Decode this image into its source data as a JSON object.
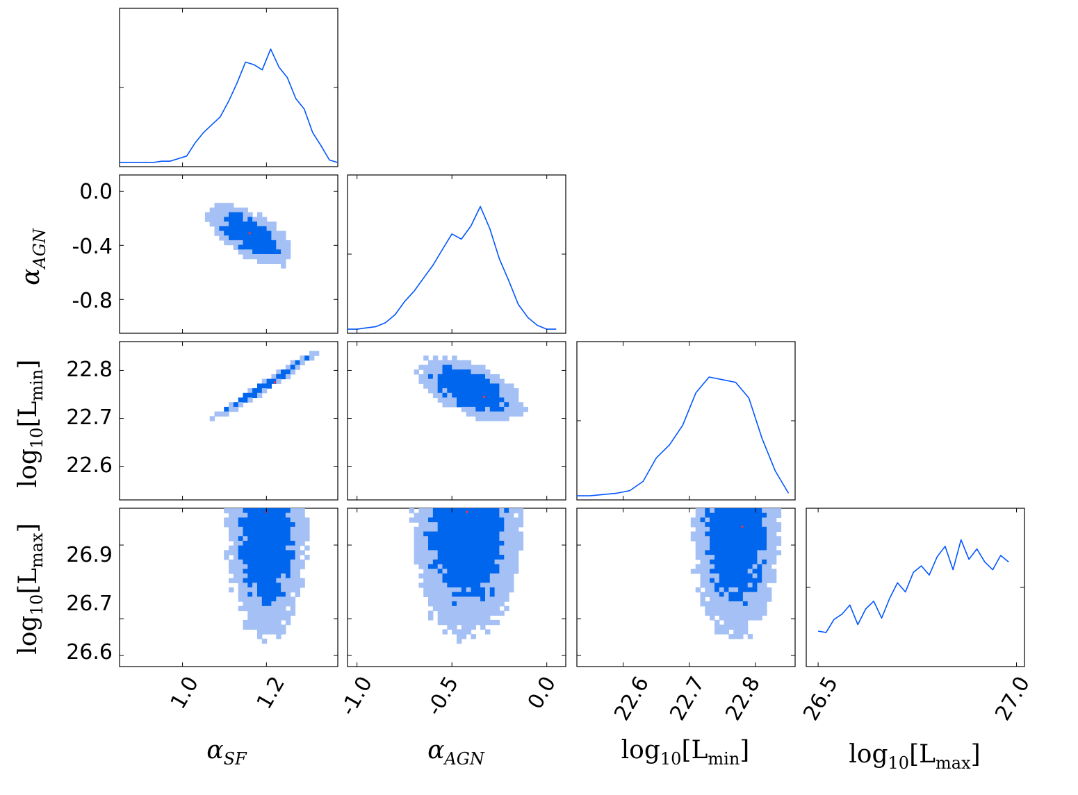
{
  "chart_data": [
    {
      "type": "line",
      "panel": "alpha_SF marginal",
      "x": [
        0.85,
        0.87,
        0.89,
        0.91,
        0.93,
        0.95,
        0.97,
        0.99,
        1.01,
        1.03,
        1.05,
        1.07,
        1.09,
        1.11,
        1.13,
        1.15,
        1.17,
        1.19,
        1.21,
        1.23,
        1.25,
        1.27,
        1.29,
        1.31,
        1.33,
        1.35,
        1.37
      ],
      "values": [
        0.01,
        0.01,
        0.01,
        0.01,
        0.01,
        0.02,
        0.02,
        0.04,
        0.06,
        0.16,
        0.24,
        0.3,
        0.36,
        0.48,
        0.62,
        0.78,
        0.76,
        0.72,
        0.88,
        0.74,
        0.66,
        0.5,
        0.42,
        0.24,
        0.14,
        0.03,
        0.01
      ],
      "xlim": [
        0.85,
        1.37
      ],
      "xlabel": "",
      "ylabel": ""
    },
    {
      "type": "heatmap",
      "panel": "alpha_AGN vs alpha_SF",
      "xlim": [
        0.85,
        1.37
      ],
      "ylim": [
        -1.05,
        0.12
      ],
      "ylabel": "α_AGN",
      "yticks": [
        "0.0",
        "-0.4",
        "-0.8"
      ],
      "center": [
        1.16,
        -0.32
      ],
      "sd": [
        0.055,
        0.12
      ],
      "corr": -0.62,
      "peak": [
        1.16,
        -0.31
      ]
    },
    {
      "type": "line",
      "panel": "alpha_AGN marginal",
      "x": [
        -1.05,
        -1.0,
        -0.95,
        -0.9,
        -0.85,
        -0.8,
        -0.75,
        -0.7,
        -0.65,
        -0.6,
        -0.55,
        -0.5,
        -0.45,
        -0.4,
        -0.35,
        -0.3,
        -0.25,
        -0.2,
        -0.15,
        -0.1,
        -0.05,
        0.0,
        0.05
      ],
      "values": [
        0.01,
        0.01,
        0.02,
        0.03,
        0.06,
        0.12,
        0.22,
        0.3,
        0.4,
        0.5,
        0.62,
        0.74,
        0.7,
        0.8,
        0.95,
        0.78,
        0.55,
        0.38,
        0.2,
        0.1,
        0.04,
        0.01,
        0.01
      ],
      "xlim": [
        -1.05,
        0.1
      ],
      "xlabel": "",
      "ylabel": ""
    },
    {
      "type": "heatmap",
      "panel": "log10 Lmin vs alpha_SF",
      "xlim": [
        0.85,
        1.37
      ],
      "ylim": [
        22.53,
        22.86
      ],
      "ylabel": "log10[Lmin]",
      "yticks": [
        "22.8",
        "22.7",
        "22.6"
      ],
      "center": [
        1.2,
        22.77
      ],
      "sd": [
        0.07,
        0.04
      ],
      "corr": 0.985,
      "peak": [
        1.22,
        22.775
      ]
    },
    {
      "type": "heatmap",
      "panel": "log10 Lmin vs alpha_AGN",
      "xlim": [
        -1.05,
        0.1
      ],
      "ylim": [
        22.53,
        22.86
      ],
      "center": [
        -0.4,
        22.76
      ],
      "sd": [
        0.15,
        0.035
      ],
      "corr": -0.55,
      "peak": [
        -0.33,
        22.745
      ]
    },
    {
      "type": "line",
      "panel": "log10 Lmin marginal",
      "x": [
        22.53,
        22.55,
        22.57,
        22.59,
        22.61,
        22.63,
        22.65,
        22.67,
        22.69,
        22.71,
        22.73,
        22.75,
        22.77,
        22.79,
        22.81,
        22.83,
        22.85
      ],
      "values": [
        0.01,
        0.01,
        0.02,
        0.03,
        0.05,
        0.12,
        0.3,
        0.4,
        0.55,
        0.8,
        0.92,
        0.9,
        0.88,
        0.76,
        0.45,
        0.2,
        0.03
      ],
      "xlim": [
        22.53,
        22.86
      ],
      "xlabel": "",
      "ylabel": ""
    },
    {
      "type": "heatmap",
      "panel": "log10 Lmax vs alpha_SF",
      "xlim": [
        0.85,
        1.37
      ],
      "ylim": [
        26.57,
        27.0
      ],
      "ylabel": "log10[Lmax]",
      "yticks": [
        "26.9",
        "26.7",
        "26.6"
      ],
      "xlabel": "α_SF",
      "xticks": [
        "1.0",
        "1.2"
      ],
      "center": [
        1.2,
        26.95
      ],
      "sd": [
        0.05,
        0.16
      ],
      "corr": 0.0,
      "peak": [
        1.2,
        26.99
      ]
    },
    {
      "type": "heatmap",
      "panel": "log10 Lmax vs alpha_AGN",
      "xlim": [
        -1.05,
        0.1
      ],
      "ylim": [
        26.57,
        27.0
      ],
      "xlabel": "α_AGN",
      "xticks": [
        "-1.0",
        "-0.5",
        "0.0"
      ],
      "center": [
        -0.42,
        26.95
      ],
      "sd": [
        0.15,
        0.16
      ],
      "corr": 0.0,
      "peak": [
        -0.42,
        26.99
      ]
    },
    {
      "type": "heatmap",
      "panel": "log10 Lmax vs log10 Lmin",
      "xlim": [
        22.53,
        22.86
      ],
      "ylim": [
        26.57,
        27.0
      ],
      "xlabel": "log10[Lmin]",
      "xticks": [
        "22.6",
        "22.7",
        "22.8"
      ],
      "center": [
        22.77,
        26.95
      ],
      "sd": [
        0.035,
        0.16
      ],
      "corr": 0.0,
      "peak": [
        22.78,
        26.95
      ]
    },
    {
      "type": "line",
      "panel": "log10 Lmax marginal",
      "x": [
        26.5,
        26.52,
        26.54,
        26.56,
        26.58,
        26.6,
        26.62,
        26.64,
        26.66,
        26.68,
        26.7,
        26.72,
        26.74,
        26.76,
        26.78,
        26.8,
        26.82,
        26.84,
        26.86,
        26.88,
        26.9,
        26.92,
        26.94,
        26.96,
        26.98
      ],
      "values": [
        0.25,
        0.24,
        0.34,
        0.38,
        0.45,
        0.3,
        0.42,
        0.48,
        0.35,
        0.5,
        0.62,
        0.55,
        0.7,
        0.75,
        0.68,
        0.82,
        0.9,
        0.72,
        0.95,
        0.8,
        0.88,
        0.78,
        0.72,
        0.83,
        0.78
      ],
      "xlim": [
        26.47,
        27.02
      ],
      "xlabel": "log10[Lmax]",
      "xticks": [
        "26.5",
        "27.0"
      ]
    }
  ],
  "colors": {
    "line": "#0055ff",
    "level1": "#a4c0f4",
    "level2": "#0066ee",
    "peak": "#ff3333"
  },
  "labels": {
    "alpha_sf": "α",
    "alpha_sf_sub": "SF",
    "alpha_agn": "α",
    "alpha_agn_sub": "AGN",
    "log": "log",
    "log_sub": "10",
    "lmin_open": "[L",
    "lmin_sub": "min",
    "lmin_close": "]",
    "lmax_open": "[L",
    "lmax_sub": "max",
    "lmax_close": "]"
  }
}
